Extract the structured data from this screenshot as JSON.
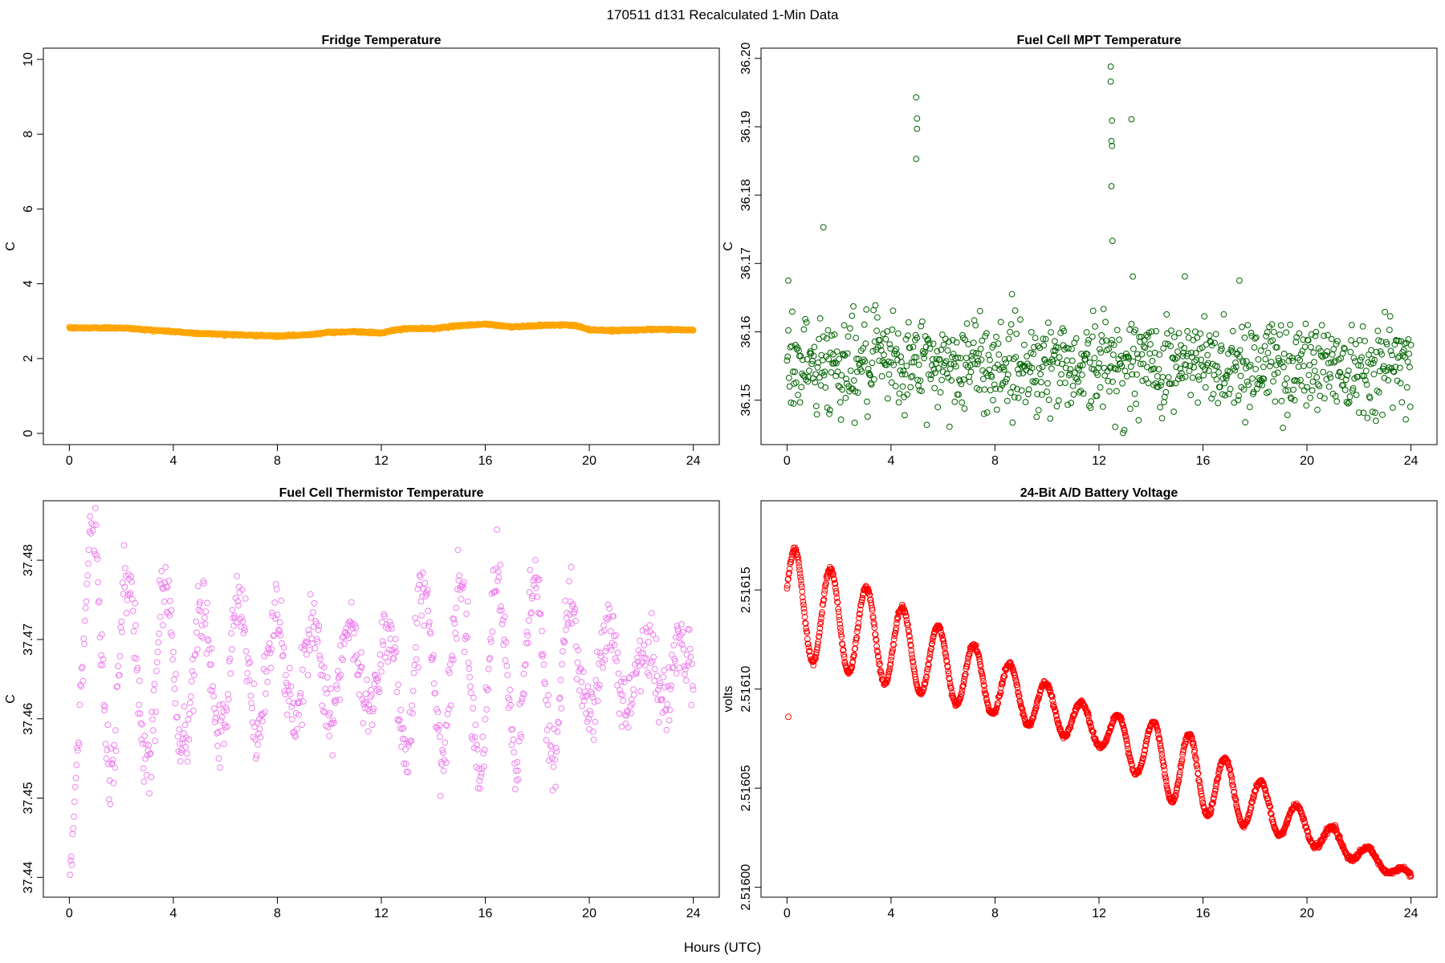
{
  "page": {
    "title": "170511   d131   Recalculated 1-Min Data",
    "xlabel": "Hours (UTC)"
  },
  "chart_data": [
    {
      "type": "scatter",
      "title": "Fridge Temperature",
      "xlabel": "",
      "ylabel": "C",
      "color": "#FFA500",
      "marker": "open-circle",
      "xlim": [
        -1,
        25
      ],
      "ylim": [
        -0.3,
        10.3
      ],
      "xticks": [
        0,
        4,
        8,
        12,
        16,
        20,
        24
      ],
      "yticks": [
        0,
        2,
        4,
        6,
        8,
        10
      ],
      "ytick_labels": [
        "0",
        "2",
        "4",
        "6",
        "8",
        "10"
      ],
      "series_generator": "1-min samples 0–24 h; smooth profile through anchors",
      "anchors": [
        [
          0,
          2.82
        ],
        [
          2,
          2.82
        ],
        [
          4,
          2.72
        ],
        [
          5,
          2.67
        ],
        [
          6,
          2.65
        ],
        [
          7,
          2.62
        ],
        [
          8,
          2.6
        ],
        [
          9,
          2.63
        ],
        [
          10,
          2.7
        ],
        [
          11,
          2.72
        ],
        [
          12,
          2.68
        ],
        [
          12.5,
          2.76
        ],
        [
          13,
          2.8
        ],
        [
          14,
          2.8
        ],
        [
          15,
          2.88
        ],
        [
          16,
          2.92
        ],
        [
          17,
          2.85
        ],
        [
          18,
          2.88
        ],
        [
          19,
          2.9
        ],
        [
          19.5,
          2.88
        ],
        [
          20,
          2.77
        ],
        [
          21,
          2.75
        ],
        [
          22,
          2.77
        ],
        [
          23,
          2.78
        ],
        [
          24,
          2.76
        ]
      ],
      "noise": 0.01
    },
    {
      "type": "scatter",
      "title": "Fuel Cell MPT Temperature",
      "xlabel": "",
      "ylabel": "C",
      "color": "#006400",
      "marker": "open-circle",
      "xlim": [
        -1,
        25
      ],
      "ylim": [
        36.1435,
        36.2015
      ],
      "xticks": [
        0,
        4,
        8,
        12,
        16,
        20,
        24
      ],
      "yticks": [
        36.15,
        36.16,
        36.17,
        36.18,
        36.19,
        36.2
      ],
      "ytick_labels": [
        "36.15",
        "36.16",
        "36.17",
        "36.18",
        "36.19",
        "36.20"
      ],
      "series_generator": "sampled every 1.5 min; mean 36.1553, sd 0.0035",
      "mean": 36.1553,
      "sd": 0.0035,
      "outliers": [
        [
          0.05,
          36.1675
        ],
        [
          1.4,
          36.1753
        ],
        [
          4.97,
          36.1943
        ],
        [
          5.0,
          36.1912
        ],
        [
          5.0,
          36.1897
        ],
        [
          4.97,
          36.1853
        ],
        [
          12.45,
          36.1988
        ],
        [
          12.45,
          36.1966
        ],
        [
          12.5,
          36.1909
        ],
        [
          12.48,
          36.1879
        ],
        [
          12.5,
          36.1872
        ],
        [
          12.48,
          36.1813
        ],
        [
          12.52,
          36.1733
        ],
        [
          13.25,
          36.1911
        ],
        [
          13.3,
          36.1681
        ],
        [
          15.3,
          36.1681
        ],
        [
          17.4,
          36.1675
        ]
      ]
    },
    {
      "type": "scatter",
      "title": "Fuel Cell Thermistor Temperature",
      "xlabel": "",
      "ylabel": "C",
      "color": "#EE82EE",
      "marker": "open-circle",
      "xlim": [
        -1,
        25
      ],
      "ylim": [
        37.4375,
        37.4875
      ],
      "xticks": [
        0,
        4,
        8,
        12,
        16,
        20,
        24
      ],
      "yticks": [
        37.44,
        37.45,
        37.46,
        37.47,
        37.48
      ],
      "ytick_labels": [
        "37.44",
        "37.45",
        "37.46",
        "37.47",
        "37.48"
      ],
      "series_generator": "sampled every 1.5 min; oscillation ~1.4 h period, damped mid-day, stronger 13–19 h",
      "base": 37.466,
      "period_h": 1.42,
      "start_min": 37.4385,
      "start_peak": 37.4865,
      "peak_time_h": 0.85,
      "amplitude_profile": [
        [
          1,
          0.013
        ],
        [
          12,
          0.004
        ],
        [
          13,
          0.011
        ],
        [
          19,
          0.012
        ],
        [
          20,
          0.005
        ],
        [
          24,
          0.003
        ]
      ],
      "noise": 0.0022
    },
    {
      "type": "scatter",
      "title": "24-Bit A/D Battery Voltage",
      "xlabel": "",
      "ylabel": "volts",
      "color": "#FF0000",
      "marker": "open-circle",
      "xlim": [
        -1,
        25
      ],
      "ylim": [
        2.515995,
        2.516195
      ],
      "xticks": [
        0,
        4,
        8,
        12,
        16,
        20,
        24
      ],
      "yticks": [
        2.516,
        2.51605,
        2.5161,
        2.51615
      ],
      "ytick_labels": [
        "2.51600",
        "2.51605",
        "2.51610",
        "2.51615"
      ],
      "series_generator": "1-min samples; declining trend with ~1.4 h oscillation, decreasing amplitude",
      "trend": [
        [
          0,
          2.516145
        ],
        [
          12,
          2.51608
        ],
        [
          24,
          2.516005
        ]
      ],
      "period_h": 1.38,
      "first_peak_h": 0.3,
      "amplitude_profile": [
        [
          0.3,
          2.7e-05
        ],
        [
          12,
          8.5e-06
        ],
        [
          15,
          2e-05
        ],
        [
          20,
          8e-06
        ],
        [
          24,
          2e-06
        ]
      ],
      "outlier": [
        0.05,
        2.516086
      ],
      "noise": 6e-07
    }
  ]
}
